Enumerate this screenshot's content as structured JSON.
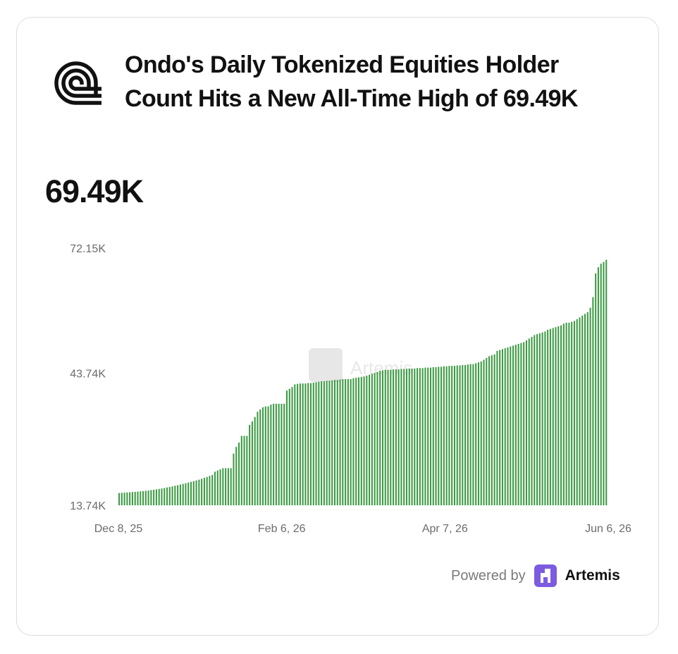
{
  "title": "Ondo's Daily Tokenized Equities Holder Count Hits a New All-Time High of 69.49K",
  "headline_value": "69.49K",
  "footer": {
    "powered_by": "Powered by",
    "brand": "Artemis"
  },
  "watermark": "Artemis",
  "colors": {
    "bar": "#3f9a45",
    "text": "#111111",
    "tick": "#6b6b6b",
    "brand": "#7b5ce0"
  },
  "chart_data": {
    "type": "bar",
    "title": "",
    "xlabel": "",
    "ylabel": "",
    "ylim": [
      13.74,
      72.15
    ],
    "y_unit": "K",
    "yticks": [
      "13.74K",
      "43.74K",
      "72.15K"
    ],
    "ytick_values": [
      13.74,
      43.74,
      72.15
    ],
    "xticks": [
      "Dec 8, 25",
      "Feb 6, 26",
      "Apr 7, 26",
      "Jun 6, 26"
    ],
    "x_start": "2025-12-08",
    "x_end": "2026-06-06",
    "grid": false,
    "legend": "none",
    "series": [
      {
        "values": [
          16.53,
          16.57,
          16.61,
          16.66,
          16.7,
          16.75,
          16.8,
          16.85,
          16.91,
          16.97,
          17.04,
          17.11,
          17.19,
          17.27,
          17.36,
          17.46,
          17.56,
          17.67,
          17.79,
          17.91,
          18.04,
          18.17,
          18.31,
          18.46,
          18.6,
          18.76,
          18.91,
          19.07,
          19.23,
          19.4,
          19.56,
          19.77,
          19.97,
          20.18,
          20.41,
          20.63,
          21.37,
          21.64,
          21.9,
          22.16,
          22.16,
          22.16,
          22.16,
          25.5,
          27.0,
          28.0,
          29.5,
          29.5,
          29.5,
          32.0,
          32.8,
          33.8,
          35.0,
          35.5,
          36.0,
          36.2,
          36.2,
          36.6,
          36.8,
          36.8,
          36.8,
          36.8,
          36.8,
          39.8,
          40.2,
          40.6,
          41.2,
          41.3,
          41.4,
          41.4,
          41.4,
          41.5,
          41.5,
          41.6,
          41.7,
          41.8,
          41.9,
          41.9,
          42.0,
          42.0,
          42.1,
          42.2,
          42.2,
          42.3,
          42.4,
          42.4,
          42.4,
          42.4,
          42.6,
          42.7,
          42.8,
          42.9,
          43.0,
          43.2,
          43.4,
          43.6,
          43.8,
          44.0,
          44.3,
          44.4,
          44.5,
          44.5,
          44.5,
          44.6,
          44.6,
          44.6,
          44.7,
          44.7,
          44.7,
          44.8,
          44.8,
          44.8,
          44.9,
          44.9,
          44.9,
          45.0,
          45.0,
          45.0,
          45.1,
          45.1,
          45.2,
          45.2,
          45.3,
          45.3,
          45.4,
          45.4,
          45.4,
          45.5,
          45.5,
          45.6,
          45.6,
          45.7,
          45.8,
          45.8,
          46.0,
          46.2,
          46.4,
          46.8,
          47.2,
          47.6,
          47.8,
          48.0,
          48.8,
          49.0,
          49.2,
          49.4,
          49.6,
          49.8,
          50.0,
          50.2,
          50.4,
          50.6,
          50.8,
          51.2,
          51.6,
          52.0,
          52.4,
          52.6,
          52.8,
          53.0,
          53.2,
          53.6,
          53.8,
          54.0,
          54.2,
          54.4,
          54.6,
          55.0,
          55.2,
          55.2,
          55.4,
          55.6,
          56.0,
          56.4,
          56.8,
          57.2,
          57.6,
          58.6,
          61.0,
          66.4,
          67.8,
          68.6,
          69.0,
          69.49
        ]
      }
    ]
  }
}
